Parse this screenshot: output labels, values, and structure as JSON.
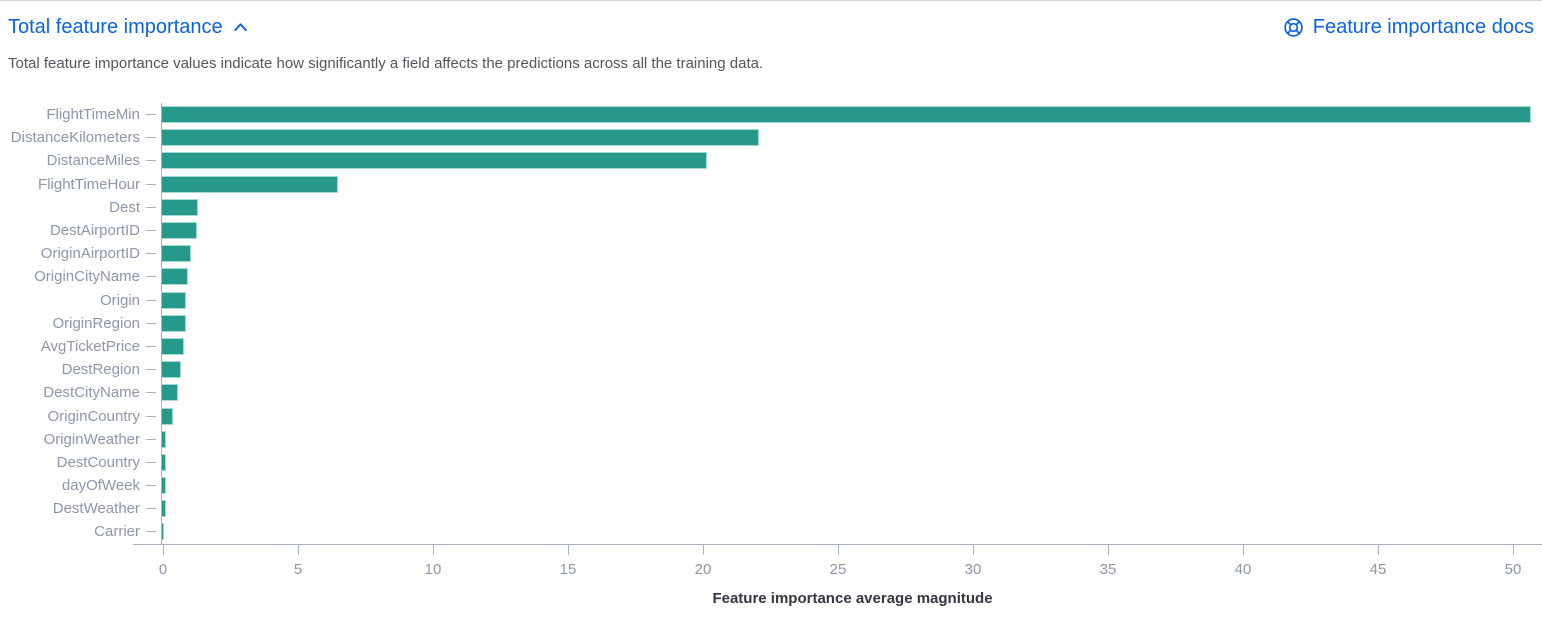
{
  "header": {
    "title": "Total feature importance",
    "collapse_icon": "chevron-up-icon",
    "docs_link": {
      "label": "Feature importance docs",
      "icon": "lifebuoy-help-icon"
    }
  },
  "description": "Total feature importance values indicate how significantly a field affects the predictions across all the training data.",
  "colors": {
    "link_blue": "#0b64dd",
    "bar_fill": "#26998a",
    "bar_stroke": "#a5dcd2",
    "axis_line": "#a9b1c3",
    "axis_text": "#8e96aa",
    "description_text": "#51565f",
    "axis_title_text": "#343741"
  },
  "chart_data": {
    "type": "bar",
    "orientation": "horizontal",
    "title": "",
    "xlabel": "Feature importance average magnitude",
    "ylabel": "",
    "categories": [
      "FlightTimeMin",
      "DistanceKilometers",
      "DistanceMiles",
      "FlightTimeHour",
      "Dest",
      "DestAirportID",
      "OriginAirportID",
      "OriginCityName",
      "Origin",
      "OriginRegion",
      "AvgTicketPrice",
      "DestRegion",
      "DestCityName",
      "OriginCountry",
      "OriginWeather",
      "DestCountry",
      "dayOfWeek",
      "DestWeather",
      "Carrier"
    ],
    "values": [
      50.7,
      22.1,
      20.2,
      6.5,
      1.35,
      1.3,
      1.06,
      0.97,
      0.9,
      0.88,
      0.83,
      0.7,
      0.6,
      0.4,
      0.16,
      0.16,
      0.15,
      0.14,
      0.05
    ],
    "xticks": [
      0,
      5,
      10,
      15,
      20,
      25,
      30,
      35,
      40,
      45,
      50
    ],
    "xlim": [
      0,
      50.75
    ],
    "grid": false,
    "legend": false
  }
}
